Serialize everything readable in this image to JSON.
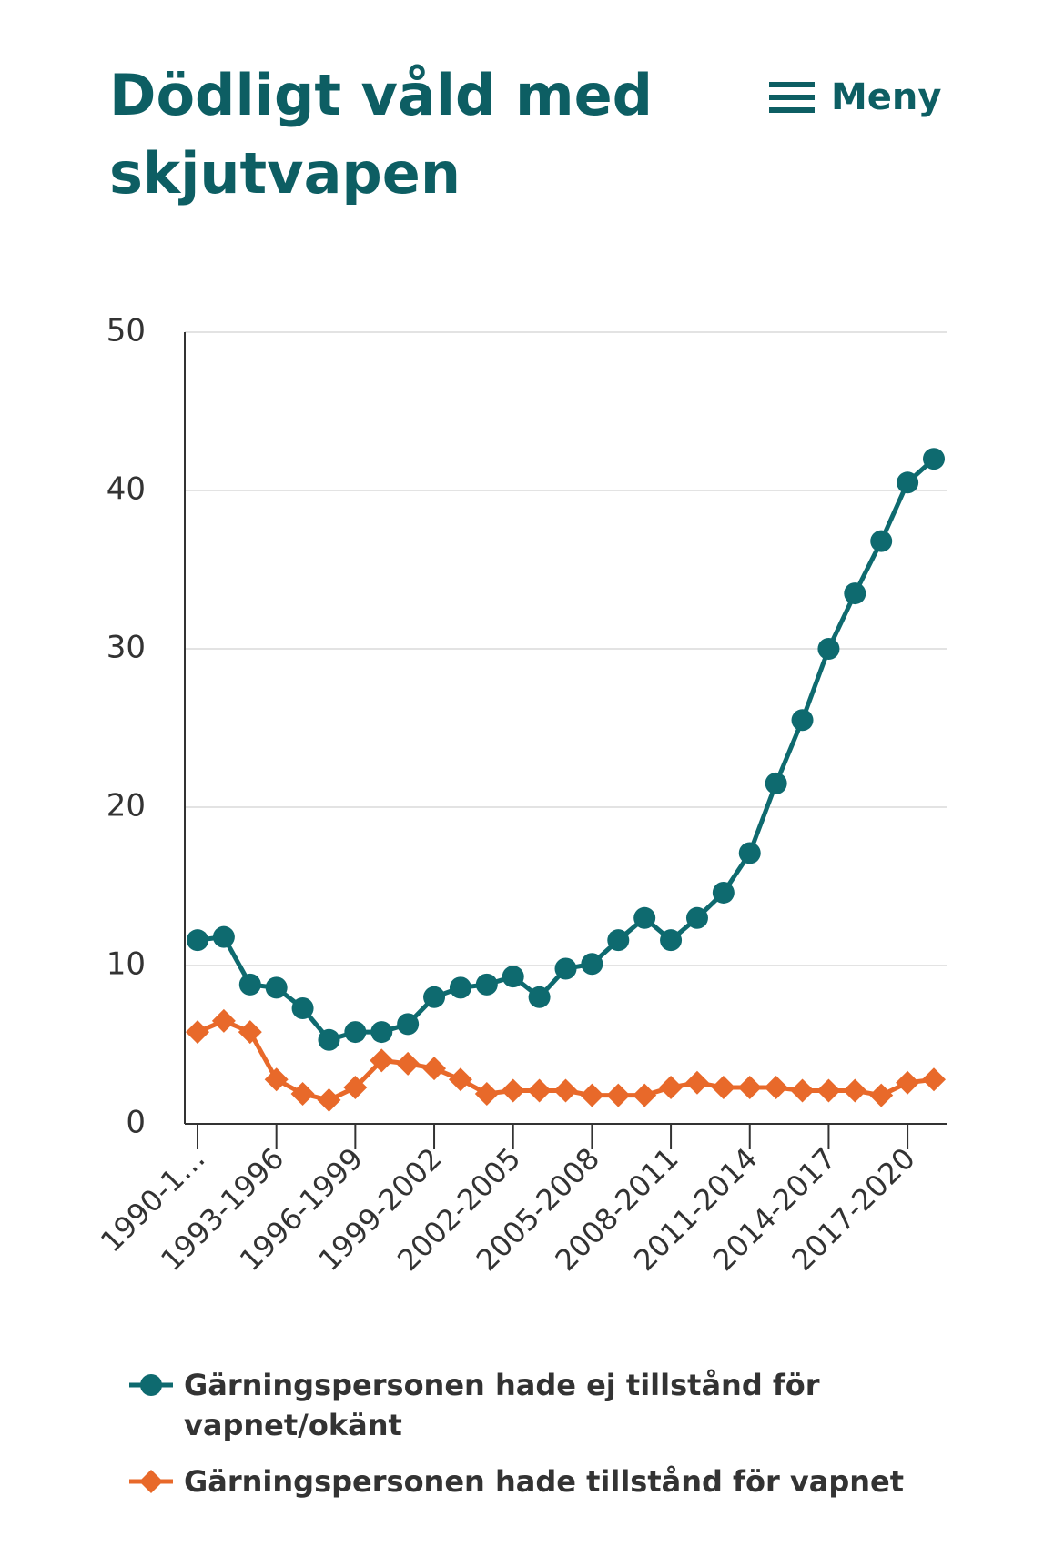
{
  "header": {
    "title": "Dödligt våld med skjutvapen",
    "menu": "Meny"
  },
  "chart_data": {
    "type": "line",
    "categories": [
      "1990-1…",
      null,
      null,
      "1993-1996",
      null,
      null,
      "1996-1999",
      null,
      null,
      "1999-2002",
      null,
      null,
      "2002-2005",
      null,
      null,
      "2005-2008",
      null,
      null,
      "2008-2011",
      null,
      null,
      "2011-2014",
      null,
      null,
      "2014-2017",
      null,
      null,
      "2017-2020",
      null
    ],
    "series": [
      {
        "name": "Gärningspersonen hade ej tillstånd för vapnet/okänt",
        "color": "#0e6a6f",
        "marker": "circle",
        "values": [
          11.6,
          11.8,
          8.8,
          8.6,
          7.3,
          5.3,
          5.8,
          5.8,
          6.3,
          8.0,
          8.6,
          8.8,
          9.3,
          8.0,
          9.8,
          10.1,
          11.6,
          13.0,
          11.6,
          13.0,
          14.6,
          17.1,
          21.5,
          25.5,
          30.0,
          33.5,
          36.8,
          40.5,
          42.0
        ]
      },
      {
        "name": "Gärningspersonen hade tillstånd för vapnet",
        "color": "#e8692a",
        "marker": "diamond",
        "values": [
          5.8,
          6.5,
          5.8,
          2.8,
          1.9,
          1.5,
          2.3,
          4.0,
          3.8,
          3.5,
          2.8,
          1.9,
          2.1,
          2.1,
          2.1,
          1.8,
          1.8,
          1.8,
          2.3,
          2.6,
          2.3,
          2.3,
          2.3,
          2.1,
          2.1,
          2.1,
          1.8,
          2.6,
          2.8
        ]
      }
    ],
    "ylim": [
      0,
      50
    ],
    "yticks": [
      0,
      10,
      20,
      30,
      40,
      50
    ],
    "grid": true
  }
}
